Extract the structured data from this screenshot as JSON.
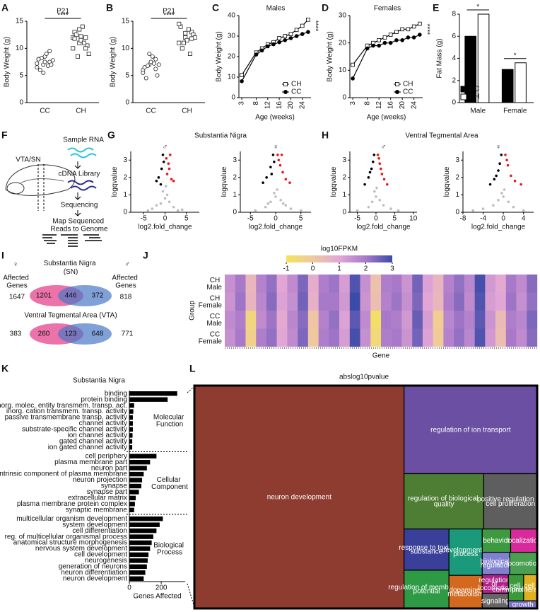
{
  "figure": {
    "diagram": {
      "label": "F",
      "region": "VTA/SN",
      "steps": [
        "Sample RNA",
        "cDNA Library",
        "Sequencing",
        "Map Sequenced Reads to Genome"
      ]
    },
    "venn": {
      "label": "I",
      "female_symbol": "♀",
      "male_symbol": "♂",
      "female_label": "Affected Genes",
      "male_label": "Affected Genes",
      "sn": {
        "title": "Substantia Nigra (SN)",
        "female_total": 1647,
        "female_only": 1201,
        "shared": 446,
        "male_only": 372,
        "male_total": 818
      },
      "vta": {
        "title": "Ventral Tegmental Area (VTA)",
        "female_total": 383,
        "female_only": 260,
        "shared": 123,
        "male_only": 648,
        "male_total": 771
      }
    }
  },
  "chart_data": [
    {
      "type": "strip",
      "label": "A",
      "title": "P21",
      "ylabel": "Body Weight (g)",
      "categories": [
        "CC",
        "CH"
      ],
      "markers": [
        "circle",
        "square"
      ],
      "annotation": "****",
      "values": [
        [
          6.5,
          7,
          7.5,
          8,
          8.5,
          7,
          6,
          9,
          7.8,
          8.2,
          6.8,
          7.2,
          5.5,
          9.5,
          8,
          7.5
        ],
        [
          10,
          11,
          12,
          13,
          11.5,
          10.5,
          12.5,
          14,
          9,
          8.5,
          11,
          12,
          13.5,
          10,
          11.8,
          12.2
        ]
      ],
      "ylim": [
        0,
        15
      ],
      "yticks": [
        0,
        5,
        10,
        15
      ]
    },
    {
      "type": "strip",
      "label": "B",
      "title": "P21",
      "ylabel": "Body Weight (g)",
      "categories": [
        "CC",
        "CH"
      ],
      "markers": [
        "circle",
        "square"
      ],
      "annotation": "****",
      "values": [
        [
          6,
          7,
          8,
          6.5,
          7.5,
          5,
          4.5,
          8.5,
          7,
          6.8,
          7.2,
          5.5,
          9,
          6.2
        ],
        [
          11,
          12,
          13,
          14,
          11.5,
          12.5,
          10,
          13.5,
          12,
          11,
          9,
          14.5,
          12.8,
          11.8
        ]
      ],
      "ylim": [
        0,
        15
      ],
      "yticks": [
        0,
        5,
        10,
        15
      ]
    },
    {
      "type": "line",
      "label": "C",
      "title": "Males",
      "xlabel": "Age (weeks)",
      "ylabel": "Body Weight (g)",
      "legend": "lower right",
      "annotation": "****",
      "x": [
        3,
        8,
        10,
        12,
        14,
        16,
        18,
        20,
        22,
        24,
        26
      ],
      "series": [
        {
          "name": "CH",
          "color": "#000000",
          "marker": "square",
          "marker_fill": "#ffffff",
          "values": [
            11,
            22,
            24,
            26,
            27,
            29,
            30,
            31,
            33,
            35,
            38
          ]
        },
        {
          "name": "CC",
          "color": "#000000",
          "marker": "circle",
          "marker_fill": "#000000",
          "values": [
            8,
            21,
            23,
            25,
            26,
            27,
            28,
            29,
            30,
            31,
            32
          ]
        }
      ],
      "xlim": [
        2,
        27
      ],
      "xticks": [
        3,
        8,
        12,
        16,
        20,
        24
      ],
      "ylim": [
        0,
        40
      ],
      "yticks": [
        0,
        10,
        20,
        30,
        40
      ]
    },
    {
      "type": "line",
      "label": "D",
      "title": "Females",
      "xlabel": "Age (weeks)",
      "ylabel": "Body Weight (g)",
      "legend": "lower right",
      "annotation": "****",
      "x": [
        3,
        8,
        10,
        12,
        14,
        16,
        18,
        20,
        22,
        24,
        26
      ],
      "series": [
        {
          "name": "CH",
          "color": "#000000",
          "marker": "square",
          "marker_fill": "#ffffff",
          "values": [
            12,
            19,
            20,
            21,
            22,
            23,
            24,
            25,
            25,
            26,
            27
          ]
        },
        {
          "name": "CC",
          "color": "#000000",
          "marker": "circle",
          "marker_fill": "#000000",
          "values": [
            7,
            18,
            19,
            19,
            20,
            20,
            21,
            21,
            22,
            22,
            23
          ]
        }
      ],
      "xlim": [
        2,
        27
      ],
      "xticks": [
        3,
        8,
        12,
        16,
        20,
        24
      ],
      "ylim": [
        0,
        30
      ],
      "yticks": [
        0,
        10,
        20,
        30
      ]
    },
    {
      "type": "bar",
      "label": "E",
      "ylabel": "Fat Mass (g)",
      "legend": "lower left",
      "categories": [
        "Male",
        "Female"
      ],
      "annotations": [
        "*",
        "*"
      ],
      "series": [
        {
          "name": "CC",
          "color": "#000000",
          "values": [
            6,
            3
          ]
        },
        {
          "name": "CH",
          "color": "#ffffff",
          "values": [
            8,
            3.6
          ]
        }
      ],
      "ylim": [
        0,
        8
      ],
      "yticks": [
        0,
        2,
        4,
        6,
        8
      ]
    },
    {
      "type": "scatter",
      "label": "G",
      "title": "Substantia Nigra",
      "subtitle": "♂",
      "xlabel": "log2.fold_change",
      "ylabel": "logqvalue",
      "series": [
        {
          "color": "#bdbdbd",
          "x": [
            -3,
            -1,
            0,
            1,
            2,
            -2,
            0.5,
            -0.5,
            3,
            4,
            -4,
            0.2
          ],
          "values": [
            0.2,
            0.5,
            0.8,
            0.6,
            0.3,
            0.4,
            1,
            1.2,
            0.1,
            0.15,
            0.1,
            1.5
          ]
        },
        {
          "color": "#000000",
          "x": [
            -1.5,
            -0.8,
            -0.5,
            -2,
            -0.3,
            -1
          ],
          "values": [
            2,
            2.5,
            3.3,
            1.8,
            2.9,
            1.6
          ]
        },
        {
          "color": "#e41a1c",
          "x": [
            0.5,
            0.8,
            1.2,
            1.5,
            2,
            0.3,
            1
          ],
          "values": [
            2.2,
            2.8,
            3.3,
            1.9,
            1.8,
            3.1,
            2.5
          ]
        }
      ],
      "xlim": [
        -8,
        8
      ],
      "xticks": [
        -5,
        0,
        5
      ],
      "ylim": [
        0,
        3.5
      ],
      "yticks": [
        0,
        1,
        2,
        3
      ]
    },
    {
      "type": "scatter",
      "subtitle": "♀",
      "xlabel": "log2.fold_change",
      "ylabel": "logqvalue",
      "series": [
        {
          "color": "#bdbdbd",
          "x": [
            -4,
            -2,
            -1,
            0,
            1,
            2,
            3,
            5,
            0.3,
            -0.3,
            1.5,
            -1.5
          ],
          "values": [
            0.1,
            0.3,
            0.6,
            0.9,
            0.7,
            0.4,
            0.2,
            0.1,
            1.3,
            1.1,
            0.5,
            0.5
          ]
        },
        {
          "color": "#000000",
          "x": [
            -0.5,
            -1,
            -1.8,
            -0.3,
            -2.5,
            -0.8
          ],
          "values": [
            3.3,
            2.6,
            2,
            2.9,
            1.7,
            2.2
          ]
        },
        {
          "color": "#e41a1c",
          "x": [
            0.4,
            0.9,
            1.4,
            2,
            2.8,
            0.6,
            1.2
          ],
          "values": [
            3.3,
            2.7,
            2.3,
            1.9,
            1.7,
            3,
            3.3
          ]
        }
      ],
      "xlim": [
        -7,
        7
      ],
      "xticks": [
        -5,
        0,
        5
      ],
      "ylim": [
        0,
        3.5
      ],
      "yticks": [
        0,
        1,
        2,
        3
      ]
    },
    {
      "type": "scatter",
      "label": "H",
      "title": "Ventral Tegmental Area",
      "subtitle": "♂",
      "xlabel": "log2.fold_change",
      "ylabel": "logqvalue",
      "series": [
        {
          "color": "#bdbdbd",
          "x": [
            -5,
            -2,
            -1,
            0,
            1,
            2,
            4,
            6,
            0.2,
            -0.4
          ],
          "values": [
            0.1,
            0.3,
            0.6,
            0.9,
            0.7,
            0.4,
            0.2,
            0.1,
            1.4,
            1.2
          ]
        },
        {
          "color": "#000000",
          "x": [
            -0.5,
            -1.2,
            -2,
            -3,
            -0.8,
            -1.6
          ],
          "values": [
            3.3,
            2.5,
            2,
            1.6,
            2.9,
            2.3
          ]
        },
        {
          "color": "#e41a1c",
          "x": [
            0.5,
            1,
            1.6,
            2.2,
            3,
            0.8,
            1.3
          ],
          "values": [
            3.3,
            2.8,
            2.2,
            1.9,
            1.6,
            3.1,
            2.5
          ]
        }
      ],
      "xlim": [
        -7,
        11
      ],
      "xticks": [
        -5,
        0,
        5,
        10
      ],
      "ylim": [
        0,
        3.5
      ],
      "yticks": [
        0,
        1,
        2,
        3
      ]
    },
    {
      "type": "scatter",
      "subtitle": "♀",
      "xlabel": "log2.fold_change",
      "ylabel": "logqvalue",
      "series": [
        {
          "color": "#bdbdbd",
          "x": [
            -6,
            -4,
            -2,
            -1,
            0,
            1,
            2,
            4,
            0.2,
            -0.3
          ],
          "values": [
            0.1,
            0.2,
            0.4,
            0.7,
            0.9,
            0.6,
            0.3,
            0.1,
            1.3,
            1.1
          ]
        },
        {
          "color": "#000000",
          "x": [
            -0.4,
            -1,
            -1.8,
            -2.6,
            -0.7,
            -1.4
          ],
          "values": [
            3.3,
            2.4,
            1.9,
            1.6,
            2.8,
            2.1
          ]
        },
        {
          "color": "#e41a1c",
          "x": [
            0.4,
            0.9,
            1.5,
            2.3,
            3.5,
            0.7
          ],
          "values": [
            3.3,
            2.7,
            2.1,
            1.8,
            1.6,
            3
          ]
        }
      ],
      "xlim": [
        -8,
        6
      ],
      "xticks": [
        -8,
        -4,
        0,
        4
      ],
      "ylim": [
        0,
        3.5
      ],
      "yticks": [
        0,
        1,
        2,
        3
      ]
    },
    {
      "type": "heatmap",
      "label": "J",
      "title": "log10FPKM",
      "xlabel": "Gene",
      "ylabel": "Group",
      "rows": [
        "CH Male",
        "CH Female",
        "CC Male",
        "CC Female"
      ],
      "clim": [
        -1,
        3
      ],
      "colorbar_ticks": [
        -1,
        0,
        1,
        2,
        3
      ],
      "colors": [
        "#f4e35a",
        "#f0c8a0",
        "#e2a6d6",
        "#a879c9",
        "#3b4ba8"
      ],
      "values": [
        [
          1.5,
          2,
          0.5,
          1.8,
          2.2,
          1,
          1.6,
          2.4,
          0.8,
          1.9,
          2.1,
          1.2,
          2.8,
          1.5,
          0.2,
          1.9,
          2,
          1.4,
          2.5,
          1.1,
          0.6,
          1.8,
          2.2,
          1.7,
          2.9,
          1.3,
          0.9,
          2,
          1.6,
          2.3
        ],
        [
          1.4,
          2.1,
          0.6,
          1.7,
          2.3,
          1.1,
          1.5,
          2.5,
          0.7,
          2,
          2,
          1.3,
          3,
          1.4,
          0.3,
          1.8,
          2.1,
          1.5,
          2.4,
          1,
          0.5,
          1.9,
          2.3,
          1.6,
          2.8,
          1.2,
          1,
          2.1,
          1.5,
          2.2
        ],
        [
          1.6,
          1.9,
          -0.5,
          1.6,
          2.1,
          0.9,
          1.7,
          2.3,
          0.1,
          1.8,
          2.2,
          1.1,
          2.7,
          1.6,
          -0.8,
          2,
          1.9,
          1.3,
          2.6,
          1.2,
          -0.2,
          1.7,
          2.1,
          1.8,
          2.7,
          1.4,
          0.4,
          1.9,
          1.7,
          2.4
        ],
        [
          1.5,
          2,
          -0.3,
          1.9,
          2.2,
          1,
          1.6,
          2.4,
          0,
          1.9,
          2.1,
          1.2,
          2.9,
          1.5,
          -0.6,
          1.9,
          2,
          1.4,
          2.5,
          1.1,
          -0.1,
          1.8,
          2.2,
          1.7,
          2.8,
          1.3,
          0.3,
          2,
          1.6,
          2.3
        ]
      ]
    },
    {
      "type": "barh",
      "label": "K",
      "title": "Substantia Nigra",
      "xlabel": "Genes Affected",
      "color": "#000000",
      "xlim": [
        0,
        350
      ],
      "xticks": [
        0,
        200
      ],
      "groups": [
        {
          "name": "Molecular Function",
          "categories": [
            "binding",
            "protein binding",
            "inorg. molec. entity transmem. transp. act.",
            "inorg. cation transmem. transp. activity",
            "passive transmembrane transp. activity",
            "channel activity",
            "substrate-specific channel activity",
            "ion channel activity",
            "gated channel activity",
            "ion gated channel activity"
          ],
          "values": [
            300,
            240,
            30,
            25,
            22,
            22,
            22,
            20,
            18,
            18
          ]
        },
        {
          "name": "Cellular Component",
          "categories": [
            "cell periphery",
            "plasma membrane part",
            "neuron part",
            "intrinsic component of plasma membrane",
            "neuron projection",
            "synapse",
            "synapse part",
            "extracellular matrix",
            "plasma membrane protein complex",
            "synaptic membrane"
          ],
          "values": [
            170,
            130,
            110,
            90,
            80,
            75,
            60,
            40,
            35,
            30
          ]
        },
        {
          "name": "Biological Process",
          "categories": [
            "multicellular organism development",
            "system development",
            "cell differentiation",
            "reg. of multicellular organismal process",
            "anatomical structure morphogenesis",
            "nervous system development",
            "cell development",
            "neurogenesis",
            "generation of neurons",
            "neuron differentiation",
            "neuron development"
          ],
          "values": [
            210,
            190,
            170,
            150,
            140,
            130,
            120,
            115,
            110,
            100,
            90
          ]
        }
      ]
    },
    {
      "type": "treemap",
      "label": "L",
      "title": "abslog10pvalue",
      "items": [
        {
          "label": "neuron development",
          "value": 1060,
          "color": "#8e3b30"
        },
        {
          "label": "regulation of ion transport",
          "value": 266,
          "color": "#6a4fa3"
        },
        {
          "label": "regulation of biological quality",
          "value": 100,
          "color": "#4e7d34"
        },
        {
          "label": "positive regulation of cell proliferation",
          "value": 67,
          "color": "#5e5e5e"
        },
        {
          "label": "response to toxic substance",
          "value": 42,
          "color": "#3a3f9a"
        },
        {
          "label": "regulation of membrane potential",
          "value": 39,
          "color": "#2e9a45"
        },
        {
          "label": "developmental process",
          "value": 35,
          "color": "#1a9a7a"
        },
        {
          "label": "dopamine metabolism",
          "value": 25,
          "color": "#d2691e"
        },
        {
          "label": "behavior",
          "value": 15,
          "color": "#3e9a40"
        },
        {
          "label": "localization",
          "value": 14,
          "color": "#d82a9a"
        },
        {
          "label": "biological regulation",
          "value": 14,
          "color": "#8080d0"
        },
        {
          "label": "locomotion",
          "value": 14,
          "color": "#4aa050"
        },
        {
          "label": "regulation of locomotion",
          "value": 11,
          "color": "#b0208a"
        },
        {
          "label": "signaling",
          "value": 9,
          "color": "#666666"
        },
        {
          "label": "cell communication",
          "value": 9,
          "color": "#3a9a3a"
        },
        {
          "label": "cell proliferation",
          "value": 8,
          "color": "#e0b020"
        },
        {
          "label": "growth",
          "value": 5,
          "color": "#7a6fc0"
        }
      ]
    }
  ]
}
